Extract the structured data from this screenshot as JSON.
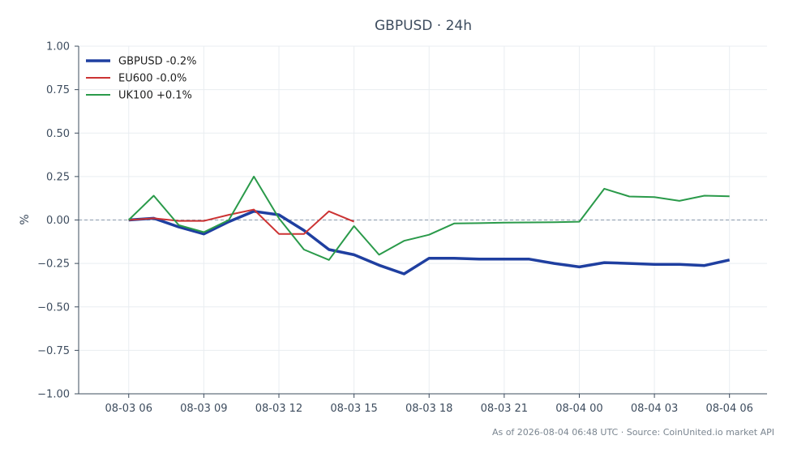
{
  "chart_data": {
    "type": "line",
    "title": "GBPUSD · 24h",
    "xlabel": "",
    "ylabel": "%",
    "ylim": [
      -1.0,
      1.0
    ],
    "yticks": [
      "1.00",
      "0.75",
      "0.50",
      "0.25",
      "0.00",
      "−0.25",
      "−0.50",
      "−0.75",
      "−1.00"
    ],
    "ytick_values": [
      1.0,
      0.75,
      0.5,
      0.25,
      0.0,
      -0.25,
      -0.5,
      -0.75,
      -1.0
    ],
    "xticks": [
      "08-03 06",
      "08-03 09",
      "08-03 12",
      "08-03 15",
      "08-03 18",
      "08-03 21",
      "08-04 00",
      "08-04 03",
      "08-04 06"
    ],
    "xtick_hours": [
      0,
      3,
      6,
      9,
      12,
      15,
      18,
      21,
      24
    ],
    "grid": true,
    "zero_line": true,
    "legend_position": "top-left",
    "series": [
      {
        "name": "GBPUSD -0.2%",
        "color": "#1f3fa0",
        "x": [
          0,
          1,
          2,
          3,
          4,
          5,
          6,
          7,
          8,
          9,
          10,
          11,
          12,
          13,
          14,
          15,
          16,
          17,
          18,
          19,
          20,
          21,
          22,
          23,
          24
        ],
        "values": [
          0.0,
          0.01,
          -0.04,
          -0.08,
          -0.01,
          0.05,
          0.03,
          -0.06,
          -0.17,
          -0.2,
          -0.26,
          -0.31,
          -0.22,
          -0.22,
          -0.225,
          -0.225,
          -0.225,
          -0.25,
          -0.27,
          -0.245,
          -0.25,
          -0.255,
          -0.255,
          -0.262,
          -0.23
        ]
      },
      {
        "name": "EU600 -0.0%",
        "color": "#cc3333",
        "x": [
          0,
          1,
          2,
          3,
          4,
          5,
          6,
          7,
          8,
          9
        ],
        "values": [
          0.0,
          0.01,
          -0.005,
          -0.005,
          0.03,
          0.06,
          -0.08,
          -0.08,
          0.05,
          -0.01
        ]
      },
      {
        "name": "UK100 +0.1%",
        "color": "#2a9a4a",
        "x": [
          0,
          1,
          2,
          3,
          4,
          5,
          6,
          7,
          8,
          9,
          10,
          11,
          12,
          13,
          14,
          15,
          16,
          17,
          18,
          19,
          20,
          21,
          22,
          23,
          24
        ],
        "values": [
          0.0,
          0.14,
          -0.03,
          -0.07,
          0.0,
          0.25,
          0.01,
          -0.17,
          -0.23,
          -0.035,
          -0.2,
          -0.12,
          -0.085,
          -0.02,
          -0.018,
          -0.015,
          -0.014,
          -0.013,
          -0.01,
          0.18,
          0.135,
          0.132,
          0.11,
          0.14,
          0.136
        ]
      }
    ]
  },
  "footer": {
    "text": "As of 2026-08-04 06:48 UTC · Source: CoinUnited.io market API"
  }
}
